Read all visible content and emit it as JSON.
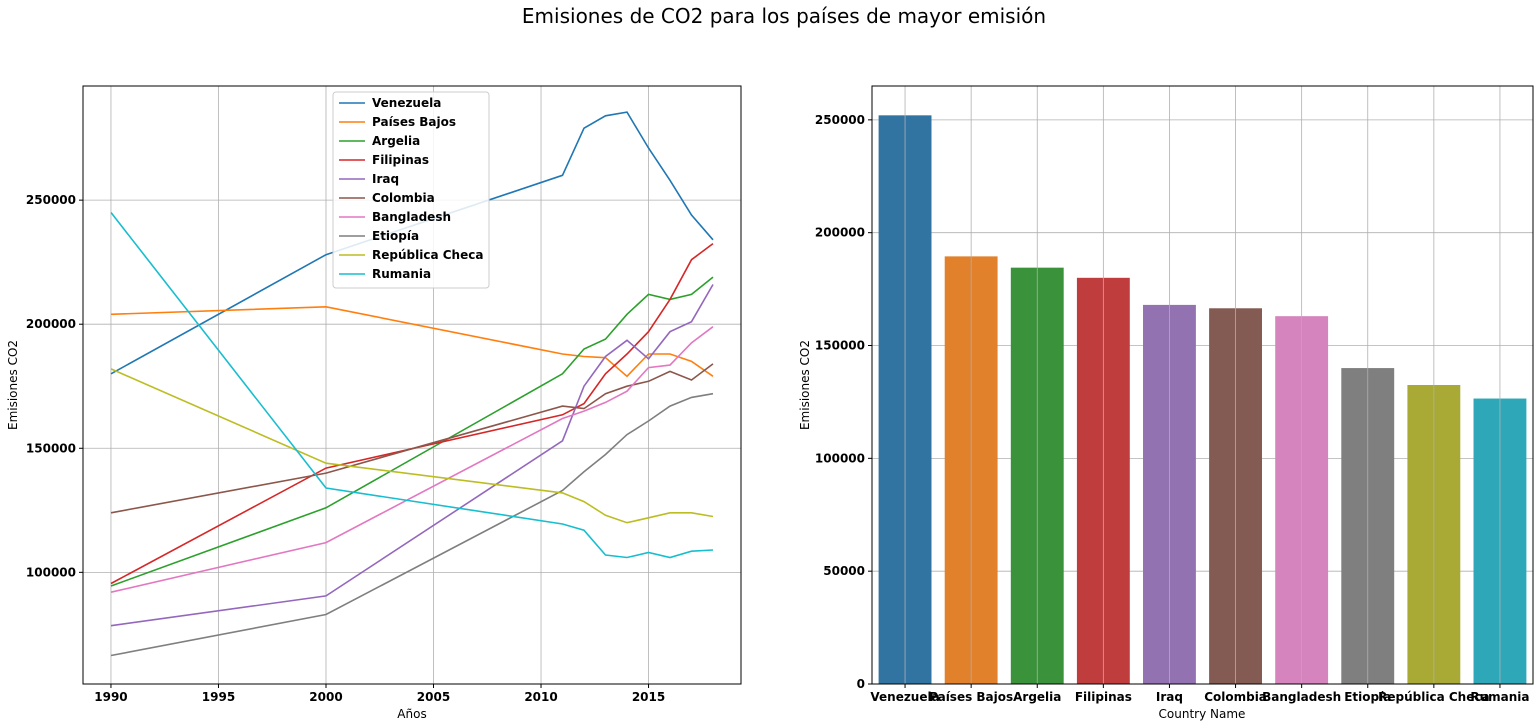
{
  "figure": {
    "title": "Emisiones de CO2 para los países de mayor emisión"
  },
  "chart_data": [
    {
      "type": "line",
      "xlabel": "Años",
      "ylabel": "Emisiones CO2",
      "xlim": [
        1988.7,
        2019.3
      ],
      "ylim": [
        55000,
        296000
      ],
      "xticks": [
        1990,
        1995,
        2000,
        2005,
        2010,
        2015
      ],
      "yticks": [
        100000,
        150000,
        200000,
        250000
      ],
      "grid": true,
      "legend_position": "top-center",
      "series": [
        {
          "name": "Venezuela",
          "color": "#1f77b4",
          "x": [
            1990,
            2000,
            2011,
            2012,
            2013,
            2014,
            2015,
            2016,
            2017,
            2018
          ],
          "y": [
            180000,
            228000,
            260000,
            279000,
            284000,
            285500,
            271000,
            258000,
            244000,
            234000
          ]
        },
        {
          "name": "Países Bajos",
          "color": "#ff7f0e",
          "x": [
            1990,
            2000,
            2011,
            2012,
            2013,
            2014,
            2015,
            2016,
            2017,
            2018
          ],
          "y": [
            204000,
            207000,
            188000,
            187000,
            186500,
            179000,
            188000,
            188000,
            185000,
            179000
          ]
        },
        {
          "name": "Argelia",
          "color": "#2ca02c",
          "x": [
            1990,
            2000,
            2011,
            2012,
            2013,
            2014,
            2015,
            2016,
            2017,
            2018
          ],
          "y": [
            94500,
            126000,
            180000,
            190000,
            194000,
            204000,
            212000,
            210000,
            212000,
            219000
          ]
        },
        {
          "name": "Filipinas",
          "color": "#d62728",
          "x": [
            1990,
            2000,
            2011,
            2012,
            2013,
            2014,
            2015,
            2016,
            2017,
            2018
          ],
          "y": [
            95500,
            142000,
            163500,
            168000,
            180000,
            188000,
            197000,
            210000,
            226000,
            232500
          ]
        },
        {
          "name": "Iraq",
          "color": "#9467bd",
          "x": [
            1990,
            2000,
            2011,
            2012,
            2013,
            2014,
            2015,
            2016,
            2017,
            2018
          ],
          "y": [
            78500,
            90500,
            153000,
            175000,
            187000,
            193500,
            186000,
            197000,
            201000,
            216000
          ]
        },
        {
          "name": "Colombia",
          "color": "#8c564b",
          "x": [
            1990,
            2000,
            2011,
            2012,
            2013,
            2014,
            2015,
            2016,
            2017,
            2018
          ],
          "y": [
            124000,
            140000,
            167000,
            166000,
            172000,
            175000,
            177000,
            181000,
            177500,
            184000
          ]
        },
        {
          "name": "Bangladesh",
          "color": "#e377c2",
          "x": [
            1990,
            2000,
            2011,
            2012,
            2013,
            2014,
            2015,
            2016,
            2017,
            2018
          ],
          "y": [
            92000,
            112000,
            162000,
            165000,
            168500,
            173000,
            182500,
            183500,
            192500,
            199000
          ]
        },
        {
          "name": "Etiopía",
          "color": "#7f7f7f",
          "x": [
            1990,
            2000,
            2011,
            2012,
            2013,
            2014,
            2015,
            2016,
            2017,
            2018
          ],
          "y": [
            66500,
            83000,
            133000,
            140500,
            147500,
            155500,
            161000,
            167000,
            170500,
            172000
          ]
        },
        {
          "name": "República Checa",
          "color": "#bcbd22",
          "x": [
            1990,
            2000,
            2011,
            2012,
            2013,
            2014,
            2015,
            2016,
            2017,
            2018
          ],
          "y": [
            182000,
            144000,
            132000,
            128500,
            123000,
            120000,
            122000,
            124000,
            124000,
            122500
          ]
        },
        {
          "name": "Rumania",
          "color": "#17becf",
          "x": [
            1990,
            2000,
            2011,
            2012,
            2013,
            2014,
            2015,
            2016,
            2017,
            2018
          ],
          "y": [
            245000,
            134000,
            119500,
            117000,
            107000,
            106000,
            108000,
            106000,
            108500,
            109000
          ]
        }
      ]
    },
    {
      "type": "bar",
      "xlabel": "Country Name",
      "ylabel": "Emisiones CO2",
      "ylim": [
        0,
        265000
      ],
      "yticks": [
        0,
        50000,
        100000,
        150000,
        200000,
        250000
      ],
      "grid": true,
      "categories": [
        "Venezuela",
        "Países Bajos",
        "Argelia",
        "Filipinas",
        "Iraq",
        "Colombia",
        "Bangladesh",
        "Etiopía",
        "República Checa",
        "Rumania"
      ],
      "values": [
        252000,
        189500,
        184500,
        180000,
        168000,
        166500,
        163000,
        140000,
        132500,
        126500
      ],
      "colors": [
        "#3274a1",
        "#e1812c",
        "#3a923a",
        "#c03d3e",
        "#9372b2",
        "#845b53",
        "#d684bd",
        "#7f7f7f",
        "#a9aa35",
        "#2ea8b9"
      ]
    }
  ]
}
